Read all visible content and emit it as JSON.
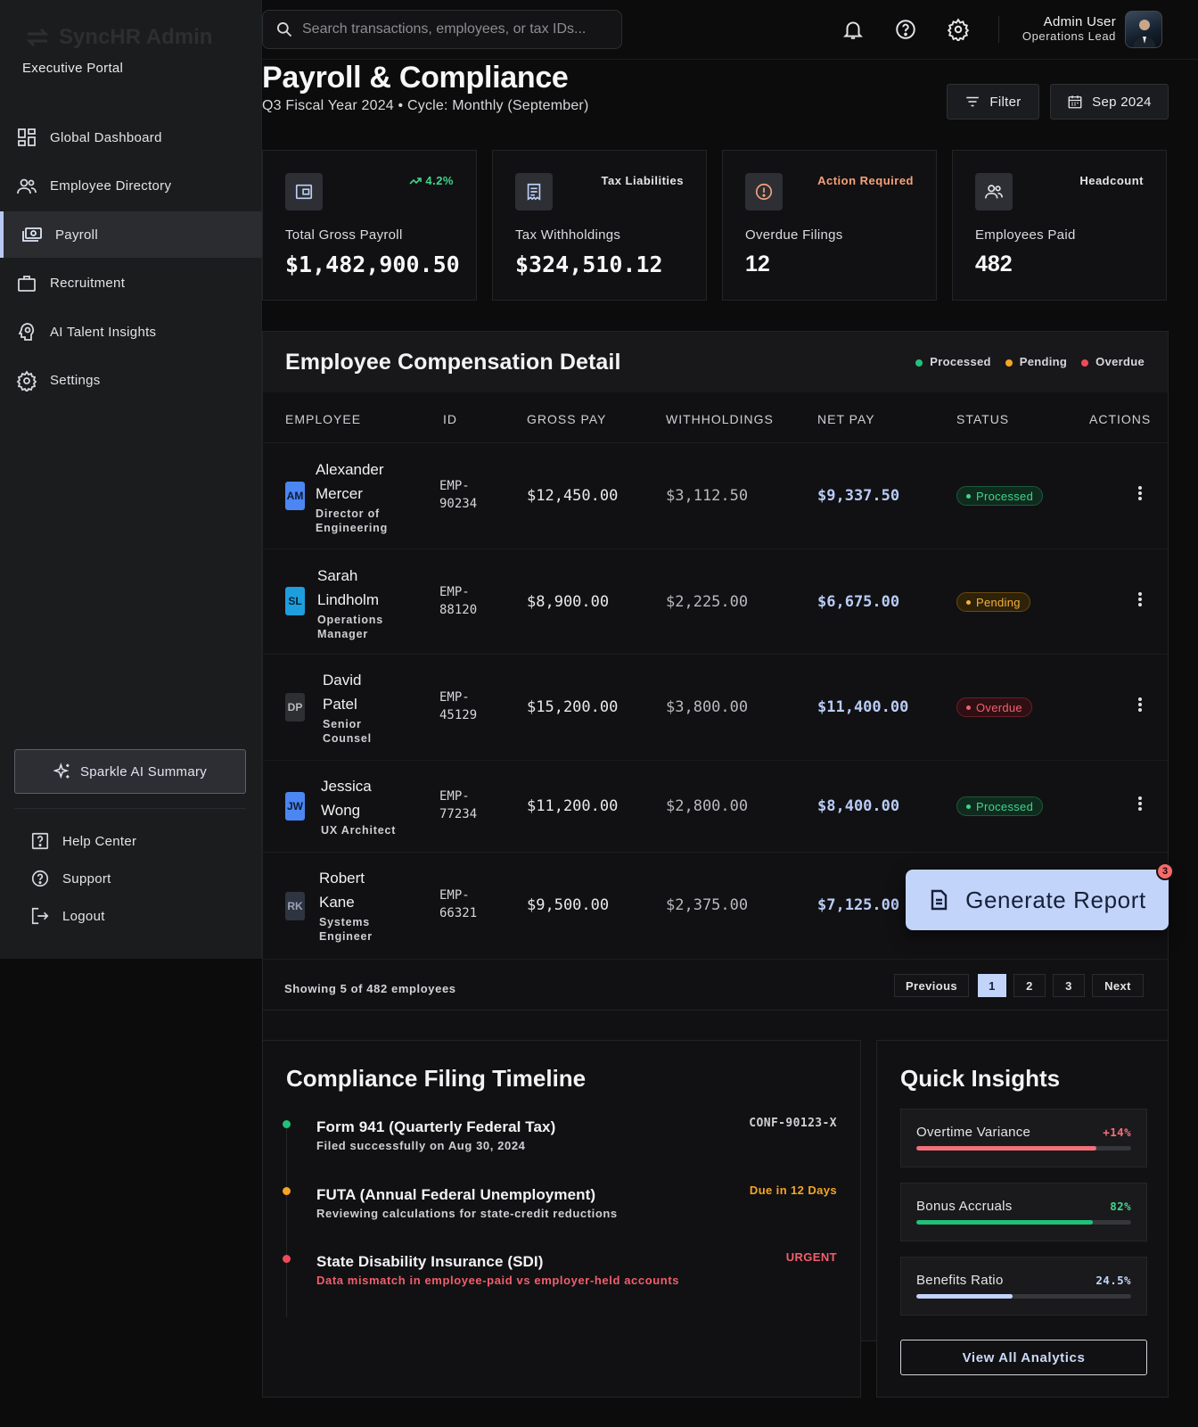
{
  "brand": {
    "name": "SyncHR Admin",
    "portal": "Executive Portal"
  },
  "nav": [
    {
      "label": "Global Dashboard",
      "icon": "dashboard-icon"
    },
    {
      "label": "Employee Directory",
      "icon": "people-icon"
    },
    {
      "label": "Payroll",
      "icon": "payments-icon",
      "active": true
    },
    {
      "label": "Recruitment",
      "icon": "briefcase-icon"
    },
    {
      "label": "AI Talent Insights",
      "icon": "psychology-icon"
    },
    {
      "label": "Settings",
      "icon": "gear-icon"
    }
  ],
  "sparkle_label": "Sparkle AI Summary",
  "side_links": {
    "help": "Help Center",
    "support": "Support",
    "logout": "Logout"
  },
  "search": {
    "placeholder": "Search transactions, employees, or tax IDs..."
  },
  "user": {
    "name": "Admin User",
    "role": "Operations Lead"
  },
  "header": {
    "title": "Payroll & Compliance",
    "subtitle": "Q3 Fiscal Year 2024 • Cycle: Monthly (September)",
    "filter_label": "Filter",
    "date_label": "Sep 2024"
  },
  "kpis": [
    {
      "tag": "4.2%",
      "label": "Total Gross Payroll",
      "value": "$1,482,900.50",
      "tag_color": "#3fd58c"
    },
    {
      "tag": "Tax Liabilities",
      "label": "Tax Withholdings",
      "value": "$324,510.12",
      "tag_color": "#e6e6e9"
    },
    {
      "tag": "Action Required",
      "label": "Overdue Filings",
      "value": "12",
      "tag_color": "#f7a27a"
    },
    {
      "tag": "Headcount",
      "label": "Employees Paid",
      "value": "482",
      "tag_color": "#e6e6e9"
    }
  ],
  "table": {
    "title": "Employee Compensation Detail",
    "legend": {
      "processed": "Processed",
      "pending": "Pending",
      "overdue": "Overdue"
    },
    "columns": {
      "employee": "EMPLOYEE",
      "id": "ID",
      "gross": "GROSS PAY",
      "withholdings": "WITHHOLDINGS",
      "net": "NET PAY",
      "status": "STATUS",
      "actions": "ACTIONS"
    },
    "rows": [
      {
        "initials": "AM",
        "first": "Alexander",
        "last": "Mercer",
        "role": "Director of Engineering",
        "id1": "EMP-",
        "id2": "90234",
        "gross": "$12,450.00",
        "withholdings": "$3,112.50",
        "net": "$9,337.50",
        "status": "Processed"
      },
      {
        "initials": "SL",
        "first": "Sarah",
        "last": "Lindholm",
        "role": "Operations Manager",
        "id1": "EMP-",
        "id2": "88120",
        "gross": "$8,900.00",
        "withholdings": "$2,225.00",
        "net": "$6,675.00",
        "status": "Pending"
      },
      {
        "initials": "DP",
        "first": "David",
        "last": "Patel",
        "role": "Senior Counsel",
        "id1": "EMP-",
        "id2": "45129",
        "gross": "$15,200.00",
        "withholdings": "$3,800.00",
        "net": "$11,400.00",
        "status": "Overdue"
      },
      {
        "initials": "JW",
        "first": "Jessica",
        "last": "Wong",
        "role": "UX Architect",
        "id1": "EMP-",
        "id2": "77234",
        "gross": "$11,200.00",
        "withholdings": "$2,800.00",
        "net": "$8,400.00",
        "status": "Processed"
      },
      {
        "initials": "RK",
        "first": "Robert",
        "last": "Kane",
        "role": "Systems Engineer",
        "id1": "EMP-",
        "id2": "66321",
        "gross": "$9,500.00",
        "withholdings": "$2,375.00",
        "net": "$7,125.00",
        "status": ""
      }
    ],
    "footer": {
      "showing": "Showing 5 of 482 employees",
      "prev": "Previous",
      "pages": [
        "1",
        "2",
        "3"
      ],
      "next": "Next"
    }
  },
  "generate_report": {
    "label": "Generate Report",
    "badge": "3"
  },
  "timeline": {
    "title": "Compliance Filing Timeline",
    "items": [
      {
        "title": "Form 941 (Quarterly Federal Tax)",
        "desc": "Filed successfully on Aug 30, 2024",
        "tag": "CONF-90123-X",
        "color": "#22c17a"
      },
      {
        "title": "FUTA (Annual Federal Unemployment)",
        "desc": "Reviewing calculations for state-credit reductions",
        "tag": "Due in 12 Days",
        "color": "#f5a524"
      },
      {
        "title": "State Disability Insurance (SDI)",
        "desc": "Data mismatch in employee-paid vs employer-held accounts",
        "tag": "URGENT",
        "color": "#f04a5a"
      }
    ]
  },
  "insights": {
    "title": "Quick Insights",
    "items": [
      {
        "label": "Overtime Variance",
        "value": "+14%",
        "fill": 0.84,
        "color": "#f2707a"
      },
      {
        "label": "Bonus Accruals",
        "value": "82%",
        "fill": 0.82,
        "color": "#22c17a"
      },
      {
        "label": "Benefits Ratio",
        "value": "24.5%",
        "fill": 0.45,
        "color": "#c3d4fb"
      }
    ],
    "button": "View All Analytics"
  }
}
